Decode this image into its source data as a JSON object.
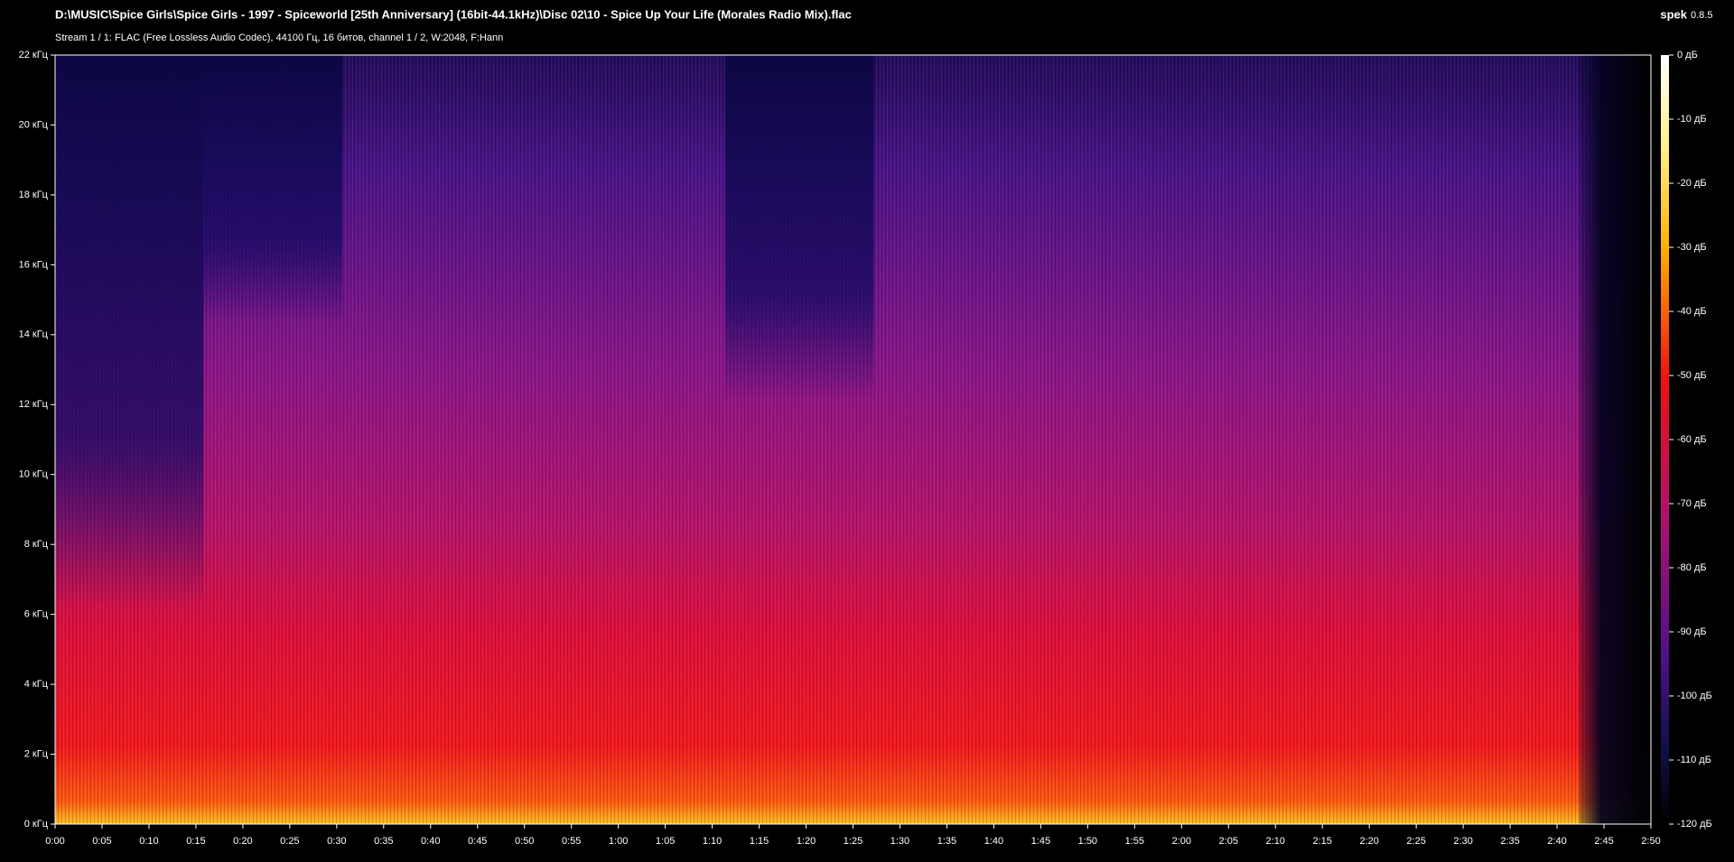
{
  "chart_data": {
    "type": "spectrogram",
    "title": "D:\\MUSIC\\Spice Girls\\Spice Girls - 1997 - Spiceworld [25th Anniversary] (16bit-44.1kHz)\\Disc 02\\10 - Spice Up Your Life (Morales Radio Mix).flac",
    "subtitle": "Stream 1 / 1: FLAC (Free Lossless Audio Codec), 44100 Гц, 16 битов, channel 1 / 2, W:2048, F:Hann",
    "brand": "spek",
    "version": "0.8.5",
    "xlim": [
      0,
      170
    ],
    "xticks": [
      {
        "value": 0,
        "label": "0:00"
      },
      {
        "value": 5,
        "label": "0:05"
      },
      {
        "value": 10,
        "label": "0:10"
      },
      {
        "value": 15,
        "label": "0:15"
      },
      {
        "value": 20,
        "label": "0:20"
      },
      {
        "value": 25,
        "label": "0:25"
      },
      {
        "value": 30,
        "label": "0:30"
      },
      {
        "value": 35,
        "label": "0:35"
      },
      {
        "value": 40,
        "label": "0:40"
      },
      {
        "value": 45,
        "label": "0:45"
      },
      {
        "value": 50,
        "label": "0:50"
      },
      {
        "value": 55,
        "label": "0:55"
      },
      {
        "value": 60,
        "label": "1:00"
      },
      {
        "value": 65,
        "label": "1:05"
      },
      {
        "value": 70,
        "label": "1:10"
      },
      {
        "value": 75,
        "label": "1:15"
      },
      {
        "value": 80,
        "label": "1:20"
      },
      {
        "value": 85,
        "label": "1:25"
      },
      {
        "value": 90,
        "label": "1:30"
      },
      {
        "value": 95,
        "label": "1:35"
      },
      {
        "value": 100,
        "label": "1:40"
      },
      {
        "value": 105,
        "label": "1:45"
      },
      {
        "value": 110,
        "label": "1:50"
      },
      {
        "value": 115,
        "label": "1:55"
      },
      {
        "value": 120,
        "label": "2:00"
      },
      {
        "value": 125,
        "label": "2:05"
      },
      {
        "value": 130,
        "label": "2:10"
      },
      {
        "value": 135,
        "label": "2:15"
      },
      {
        "value": 140,
        "label": "2:20"
      },
      {
        "value": 145,
        "label": "2:25"
      },
      {
        "value": 150,
        "label": "2:30"
      },
      {
        "value": 155,
        "label": "2:35"
      },
      {
        "value": 160,
        "label": "2:40"
      },
      {
        "value": 165,
        "label": "2:45"
      },
      {
        "value": 170,
        "label": "2:50"
      }
    ],
    "ylim": [
      0,
      22
    ],
    "yticks": [
      {
        "value": 0,
        "label": "0 кГц"
      },
      {
        "value": 2,
        "label": "2 кГц"
      },
      {
        "value": 4,
        "label": "4 кГц"
      },
      {
        "value": 6,
        "label": "6 кГц"
      },
      {
        "value": 8,
        "label": "8 кГц"
      },
      {
        "value": 10,
        "label": "10 кГц"
      },
      {
        "value": 12,
        "label": "12 кГц"
      },
      {
        "value": 14,
        "label": "14 кГц"
      },
      {
        "value": 16,
        "label": "16 кГц"
      },
      {
        "value": 18,
        "label": "18 кГц"
      },
      {
        "value": 20,
        "label": "20 кГц"
      },
      {
        "value": 22,
        "label": "22 кГц"
      }
    ],
    "clim": [
      -120,
      0
    ],
    "cticks": [
      {
        "value": 0,
        "label": "0 дБ"
      },
      {
        "value": -10,
        "label": "-10 дБ"
      },
      {
        "value": -20,
        "label": "-20 дБ"
      },
      {
        "value": -30,
        "label": "-30 дБ"
      },
      {
        "value": -40,
        "label": "-40 дБ"
      },
      {
        "value": -50,
        "label": "-50 дБ"
      },
      {
        "value": -60,
        "label": "-60 дБ"
      },
      {
        "value": -70,
        "label": "-70 дБ"
      },
      {
        "value": -80,
        "label": "-80 дБ"
      },
      {
        "value": -90,
        "label": "-90 дБ"
      },
      {
        "value": -100,
        "label": "-100 дБ"
      },
      {
        "value": -110,
        "label": "-110 дБ"
      },
      {
        "value": -120,
        "label": "-120 дБ"
      }
    ]
  }
}
